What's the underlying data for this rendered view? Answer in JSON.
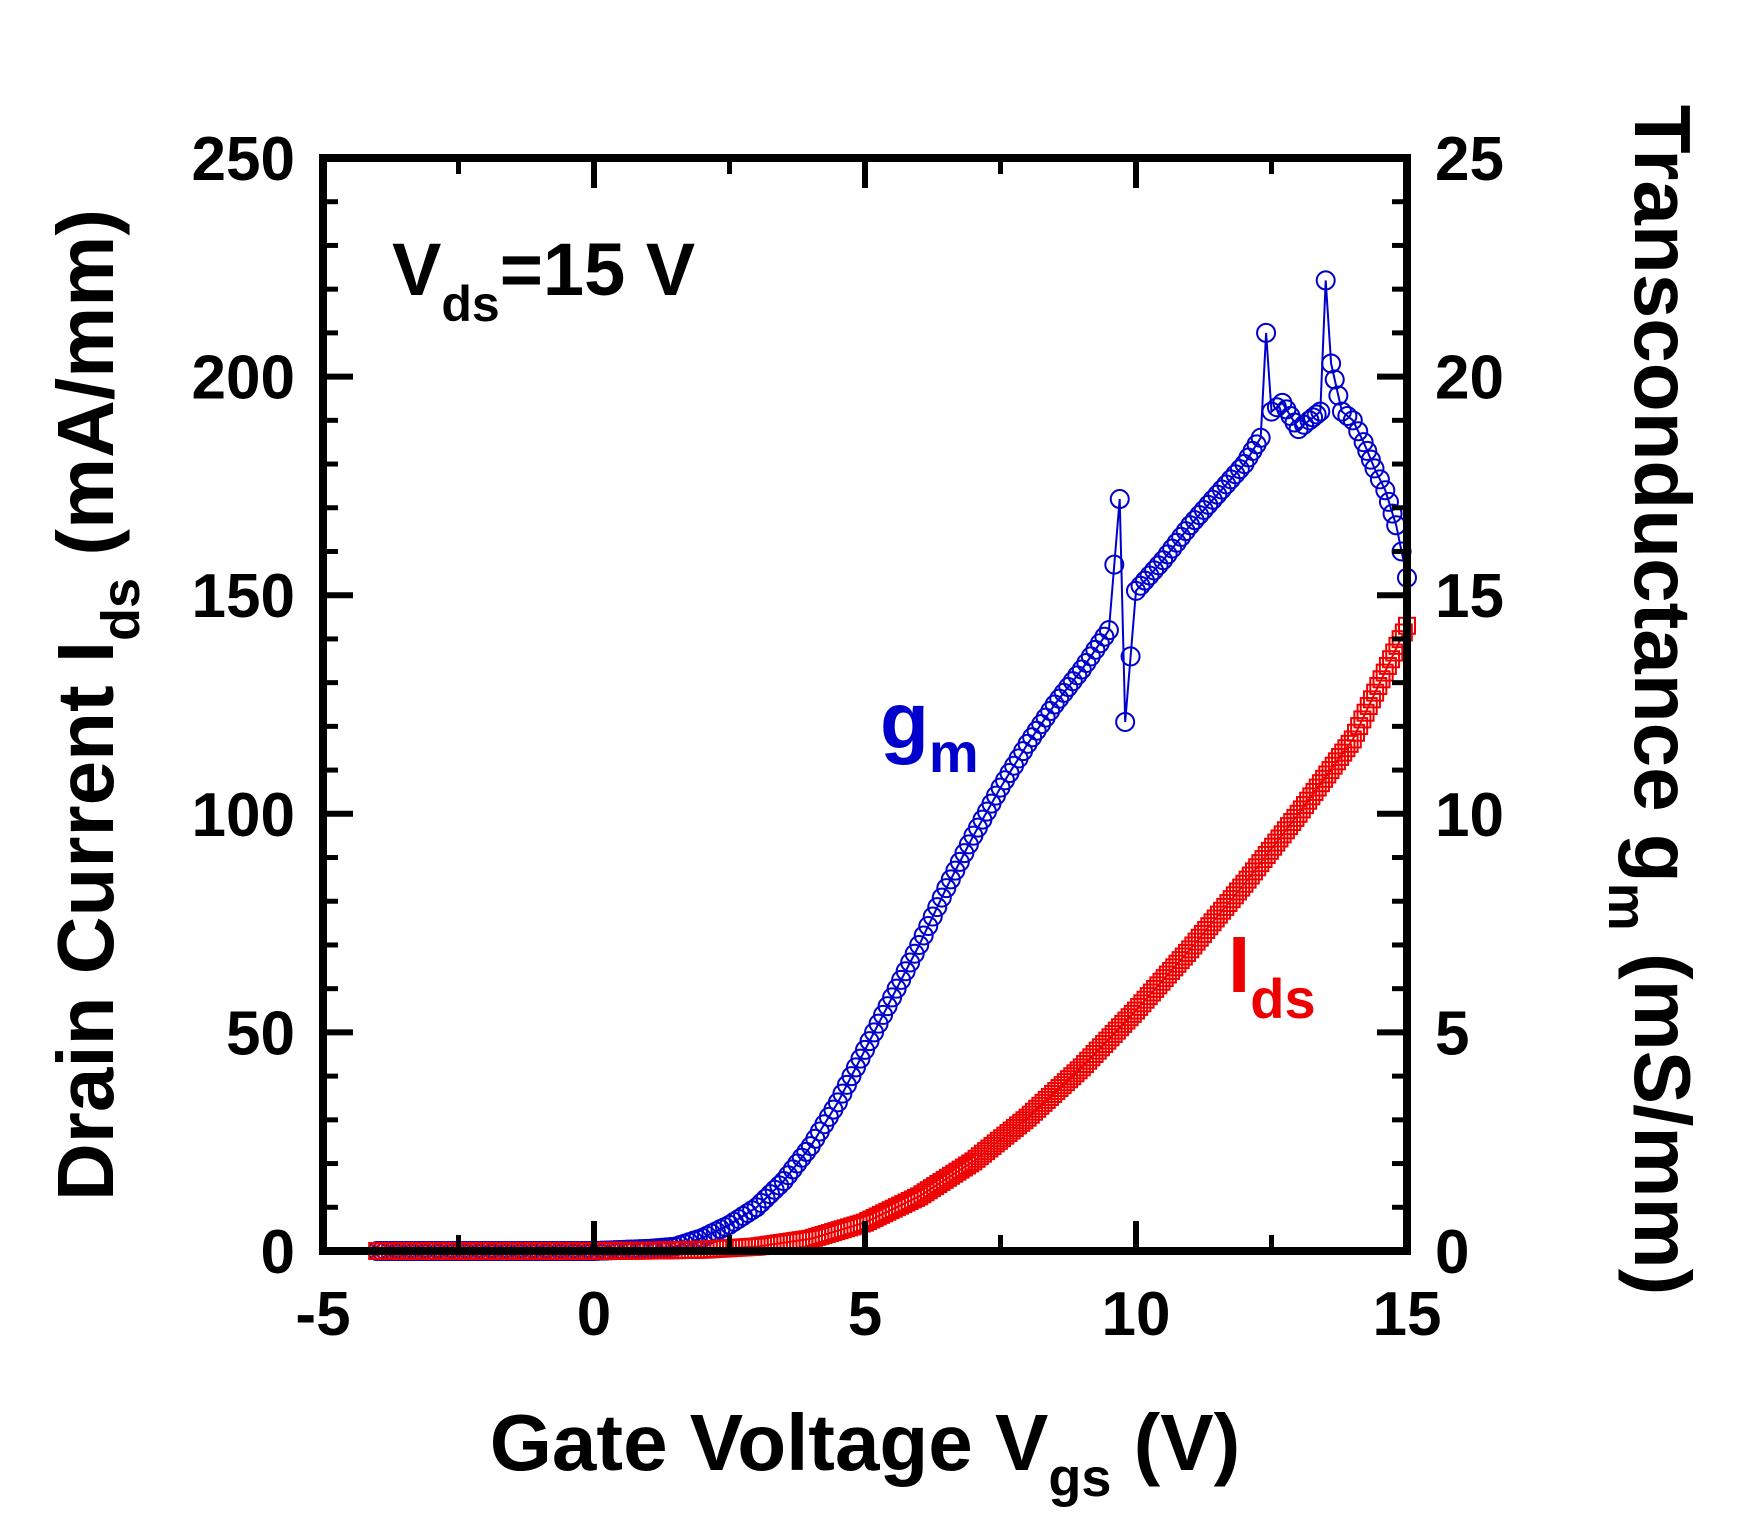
{
  "chart_data": {
    "type": "scatter",
    "annotation": {
      "base": "V",
      "sub": "ds",
      "rest": "=15 V"
    },
    "xaxis": {
      "label_base": "Gate Voltage V",
      "label_sub": "gs",
      "label_rest": " (V)",
      "range": [
        -5,
        15
      ],
      "ticks": [
        "-5",
        "0",
        "5",
        "10",
        "15"
      ]
    },
    "yaxis_left": {
      "label_base": "Drain Current I",
      "label_sub": "ds",
      "label_rest": " (mA/mm)",
      "range": [
        0,
        250
      ],
      "ticks": [
        "0",
        "50",
        "100",
        "150",
        "200",
        "250"
      ]
    },
    "yaxis_right": {
      "label_base": "Transconductance g",
      "label_sub": "m",
      "label_rest": " (mS/mm)",
      "range": [
        0,
        25
      ],
      "ticks": [
        "0",
        "5",
        "10",
        "15",
        "20",
        "25"
      ]
    },
    "series": [
      {
        "name": "gm",
        "label_base": "g",
        "label_sub": "m",
        "axis": "right",
        "marker": "circle",
        "color": "#0000cc",
        "x": [
          -4.0,
          -3.0,
          -2.0,
          -1.0,
          0.0,
          1.0,
          1.5,
          2.0,
          2.5,
          3.0,
          3.5,
          4.0,
          4.5,
          5.0,
          5.5,
          6.0,
          6.5,
          7.0,
          7.5,
          8.0,
          8.5,
          9.0,
          9.5,
          9.7,
          9.8,
          10.0,
          10.5,
          11.0,
          11.5,
          12.0,
          12.3,
          12.4,
          12.5,
          12.7,
          13.0,
          13.2,
          13.4,
          13.5,
          13.6,
          13.8,
          14.0,
          14.2,
          14.4,
          14.6,
          14.8,
          15.0
        ],
        "y": [
          0.0,
          0.0,
          0.0,
          0.0,
          0.0,
          0.05,
          0.1,
          0.3,
          0.6,
          1.0,
          1.6,
          2.4,
          3.4,
          4.6,
          5.8,
          7.0,
          8.3,
          9.5,
          10.6,
          11.6,
          12.5,
          13.3,
          14.2,
          17.2,
          12.1,
          15.1,
          15.8,
          16.6,
          17.3,
          18.0,
          18.6,
          21.0,
          19.2,
          19.4,
          18.8,
          19.0,
          19.2,
          22.2,
          20.3,
          19.2,
          19.0,
          18.5,
          17.9,
          17.4,
          16.6,
          15.4
        ]
      },
      {
        "name": "Ids",
        "label_base": "I",
        "label_sub": "ds",
        "axis": "left",
        "marker": "square",
        "color": "#ee0000",
        "x": [
          -4.0,
          -3.0,
          -2.0,
          -1.0,
          0.0,
          1.0,
          2.0,
          3.0,
          4.0,
          5.0,
          6.0,
          7.0,
          8.0,
          9.0,
          10.0,
          11.0,
          12.0,
          13.0,
          14.0,
          15.0
        ],
        "y": [
          0.0,
          0.0,
          0.0,
          0.0,
          0.0,
          0.1,
          0.3,
          1.0,
          2.8,
          6.5,
          12.5,
          20.5,
          30.5,
          42.0,
          55.0,
          69.0,
          84.0,
          100.0,
          117.0,
          143.0
        ]
      }
    ]
  }
}
